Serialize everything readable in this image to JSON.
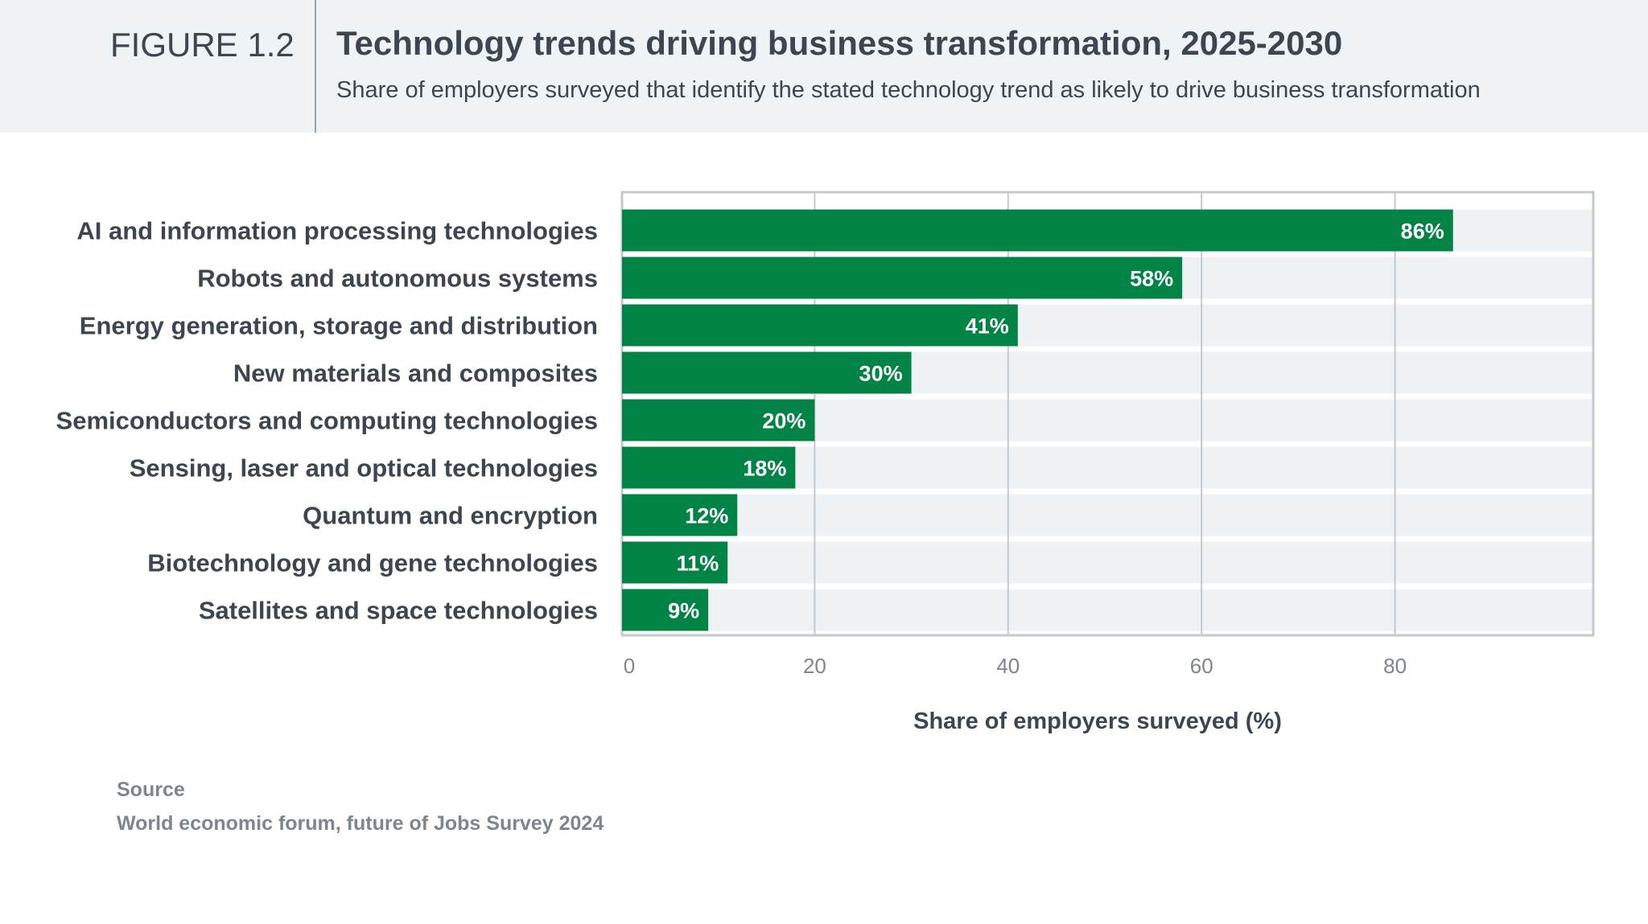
{
  "header": {
    "figure_label": "FIGURE 1.2",
    "title": "Technology trends driving business transformation, 2025-2030",
    "subtitle": "Share of employers surveyed that identify the stated technology trend as likely to drive business transformation"
  },
  "chart_data": {
    "type": "bar",
    "orientation": "horizontal",
    "categories": [
      "AI and information processing technologies",
      "Robots and autonomous systems",
      "Energy generation, storage and distribution",
      "New materials and composites",
      "Semiconductors and computing technologies",
      "Sensing, laser and optical technologies",
      "Quantum and encryption",
      "Biotechnology and gene technologies",
      "Satellites and space technologies"
    ],
    "values": [
      86,
      58,
      41,
      30,
      20,
      18,
      12,
      11,
      9
    ],
    "data_labels": [
      "86%",
      "58%",
      "41%",
      "30%",
      "20%",
      "18%",
      "12%",
      "11%",
      "9%"
    ],
    "xlabel": "Share of employers surveyed (%)",
    "xlim": [
      0,
      100
    ],
    "xticks": [
      "0",
      "20",
      "40",
      "60",
      "80"
    ],
    "grid": true,
    "bar_color": "#008345",
    "band_color": "#eff2f5"
  },
  "source": {
    "heading": "Source",
    "text": "World economic forum, future of Jobs Survey 2024"
  }
}
